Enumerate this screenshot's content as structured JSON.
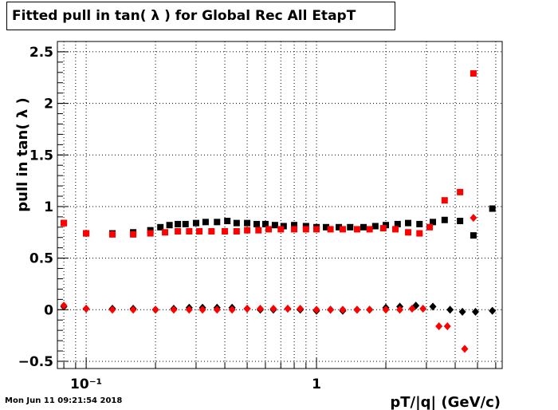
{
  "chart_data": {
    "type": "scatter",
    "title": "Fitted pull in tan( λ ) for Global Rec All EtapT",
    "xlabel": "pT/|q| (GeV/c)",
    "ylabel": "pull in tan( λ )",
    "x_scale": "log",
    "xlim": [
      0.075,
      6.4
    ],
    "ylim": [
      -0.57,
      2.6
    ],
    "grid": true,
    "x_tick_labels": [
      {
        "value": 0.1,
        "label": "10⁻¹"
      },
      {
        "value": 1,
        "label": "1"
      }
    ],
    "y_ticks": [
      -0.5,
      0,
      0.5,
      1,
      1.5,
      2,
      2.5
    ],
    "y_tick_labels": [
      "−0.5",
      "0",
      "0.5",
      "1",
      "1.5",
      "2",
      "2.5"
    ],
    "series": [
      {
        "color": "#000000",
        "marker": "square",
        "x": [
          0.08,
          0.1,
          0.13,
          0.16,
          0.19,
          0.21,
          0.23,
          0.25,
          0.27,
          0.3,
          0.33,
          0.37,
          0.41,
          0.45,
          0.5,
          0.55,
          0.6,
          0.66,
          0.72,
          0.8,
          0.9,
          1.0,
          1.1,
          1.25,
          1.4,
          1.6,
          1.8,
          2.0,
          2.25,
          2.5,
          2.8,
          3.2,
          3.6,
          4.2,
          4.8,
          5.8
        ],
        "y": [
          0.84,
          0.74,
          0.74,
          0.75,
          0.77,
          0.8,
          0.82,
          0.83,
          0.83,
          0.84,
          0.85,
          0.85,
          0.86,
          0.84,
          0.84,
          0.83,
          0.83,
          0.82,
          0.81,
          0.82,
          0.81,
          0.8,
          0.8,
          0.8,
          0.8,
          0.8,
          0.81,
          0.82,
          0.83,
          0.84,
          0.83,
          0.85,
          0.87,
          0.86,
          0.72,
          0.98
        ]
      },
      {
        "color": "#ff0000",
        "marker": "square",
        "x": [
          0.08,
          0.1,
          0.13,
          0.16,
          0.19,
          0.22,
          0.25,
          0.28,
          0.31,
          0.35,
          0.4,
          0.45,
          0.5,
          0.56,
          0.62,
          0.7,
          0.8,
          0.9,
          1.0,
          1.15,
          1.3,
          1.5,
          1.7,
          1.95,
          2.2,
          2.5,
          2.8,
          3.1,
          3.6,
          4.2,
          4.8
        ],
        "y": [
          0.84,
          0.74,
          0.73,
          0.73,
          0.74,
          0.75,
          0.76,
          0.76,
          0.76,
          0.76,
          0.76,
          0.76,
          0.77,
          0.77,
          0.78,
          0.78,
          0.78,
          0.78,
          0.78,
          0.78,
          0.78,
          0.78,
          0.78,
          0.79,
          0.78,
          0.75,
          0.74,
          0.8,
          1.06,
          1.14,
          2.29
        ]
      },
      {
        "color": "#000000",
        "marker": "diamond",
        "x": [
          0.08,
          0.1,
          0.13,
          0.16,
          0.2,
          0.24,
          0.28,
          0.32,
          0.37,
          0.43,
          0.5,
          0.57,
          0.65,
          0.75,
          0.85,
          1.0,
          1.15,
          1.3,
          1.5,
          1.7,
          2.0,
          2.3,
          2.7,
          3.2,
          3.8,
          4.3,
          4.9,
          5.8
        ],
        "y": [
          0.03,
          0.01,
          0.01,
          0.01,
          0.0,
          0.01,
          0.02,
          0.02,
          0.02,
          0.02,
          0.01,
          0.0,
          0.0,
          0.01,
          0.0,
          -0.01,
          0.0,
          -0.01,
          0.0,
          0.0,
          0.02,
          0.03,
          0.04,
          0.03,
          0.0,
          -0.02,
          -0.02,
          -0.01
        ]
      },
      {
        "color": "#ff0000",
        "marker": "diamond",
        "x": [
          0.08,
          0.1,
          0.13,
          0.16,
          0.2,
          0.24,
          0.28,
          0.32,
          0.37,
          0.43,
          0.5,
          0.57,
          0.65,
          0.75,
          0.85,
          1.0,
          1.15,
          1.3,
          1.5,
          1.7,
          2.0,
          2.3,
          2.6,
          2.9,
          3.4,
          3.7,
          4.4,
          4.8
        ],
        "y": [
          0.04,
          0.01,
          0.0,
          0.0,
          0.0,
          0.0,
          0.0,
          0.0,
          0.0,
          0.0,
          0.01,
          0.01,
          0.01,
          0.01,
          0.01,
          0.0,
          0.0,
          0.0,
          0.0,
          0.0,
          0.0,
          0.0,
          0.01,
          0.01,
          -0.16,
          -0.16,
          -0.38,
          0.89
        ]
      }
    ]
  },
  "footer": {
    "timestamp": "Mon Jun 11 09:21:54 2018"
  }
}
